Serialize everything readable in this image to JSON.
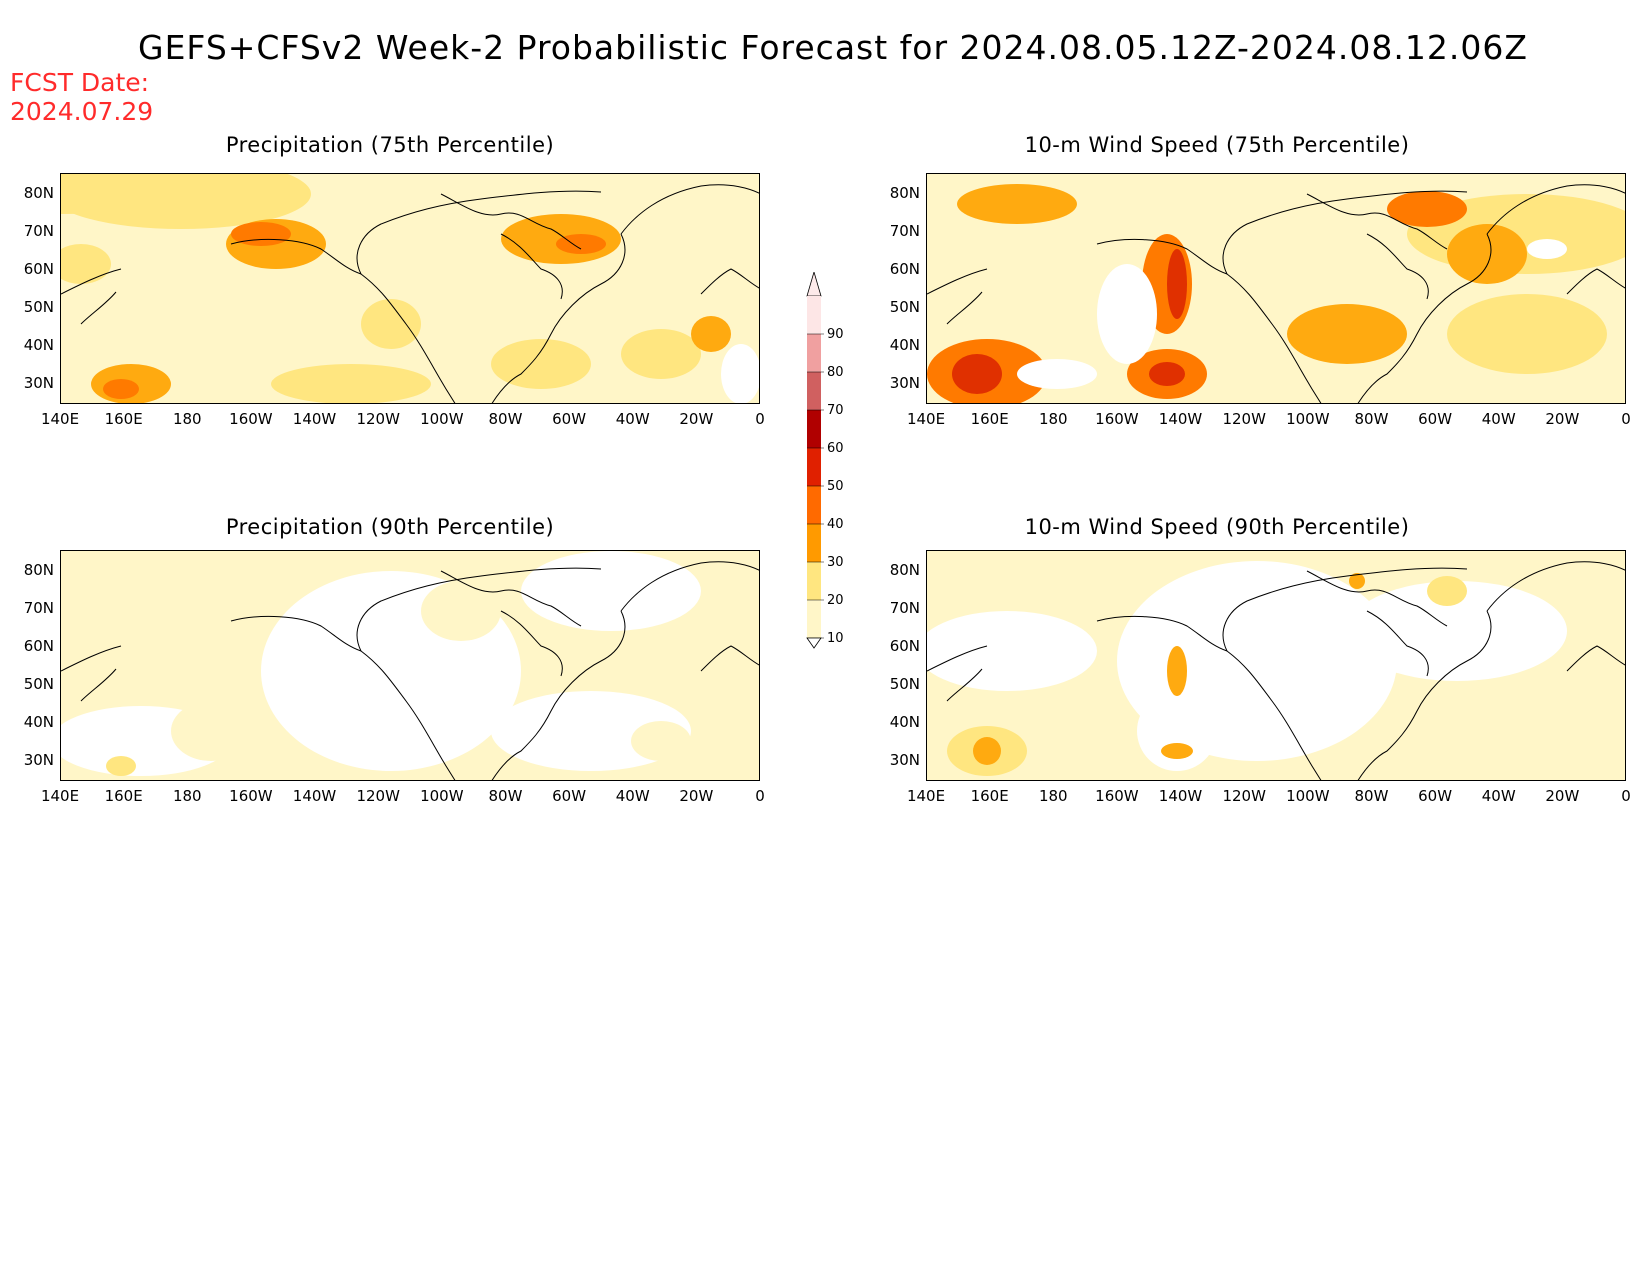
{
  "title": "GEFS+CFSv2 Week-2 Probabilistic Forecast for 2024.08.05.12Z-2024.08.12.06Z",
  "fcst_date_label": "FCST Date:",
  "fcst_date": "2024.07.29",
  "panels": [
    {
      "title": "Precipitation (75th Percentile)"
    },
    {
      "title": "10-m Wind Speed (75th Percentile)"
    },
    {
      "title": "Precipitation (90th Percentile)"
    },
    {
      "title": "10-m Wind Speed (90th Percentile)"
    }
  ],
  "lat_labels": [
    "80N",
    "70N",
    "60N",
    "50N",
    "40N",
    "30N"
  ],
  "lon_labels": [
    "140E",
    "160E",
    "180",
    "160W",
    "140W",
    "120W",
    "100W",
    "80W",
    "60W",
    "40W",
    "20W",
    "0"
  ],
  "colorbar": {
    "levels": [
      "10",
      "20",
      "30",
      "40",
      "50",
      "60",
      "70",
      "80",
      "90"
    ],
    "colors": [
      "#fff6c8",
      "#ffe680",
      "#ff9a00",
      "#ff6a00",
      "#e02000",
      "#b00000",
      "#d06060",
      "#f0a0a0",
      "#fde6e6"
    ]
  },
  "fill_colors": {
    "lt10": "#ffffff",
    "c10_20": "#fff6c8",
    "c20_30": "#ffe680",
    "c30_40": "#ffaa10",
    "c40_50": "#ff7a00",
    "c50_60": "#e03000"
  }
}
